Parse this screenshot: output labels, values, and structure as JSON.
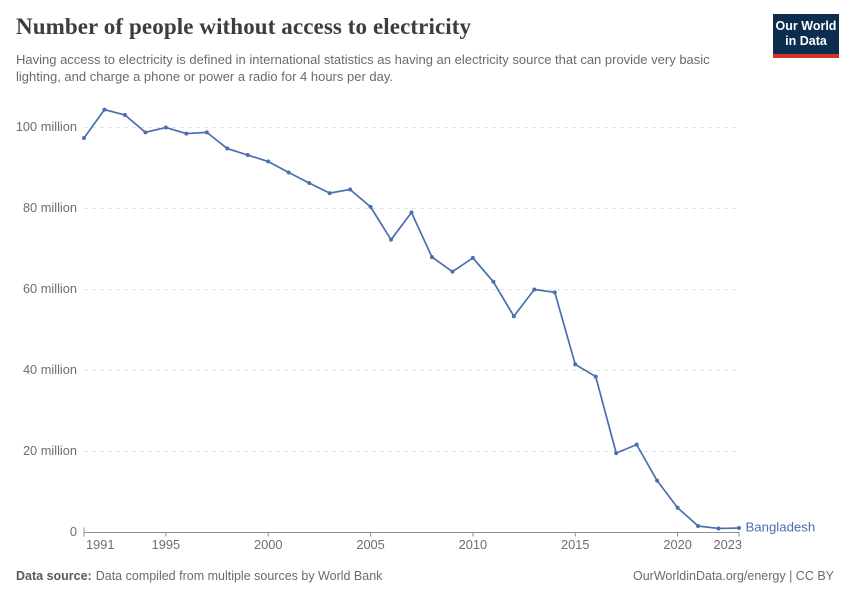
{
  "header": {
    "title": "Number of people without access to electricity",
    "subtitle": "Having access to electricity is defined in international statistics as having an electricity source that can provide very basic lighting, and charge a phone or power a radio for 4 hours per day.",
    "logo": {
      "line1": "Our World",
      "line2": "in Data",
      "bg_color": "#0d2d4f",
      "accent_color": "#d3352e"
    }
  },
  "chart_data": {
    "type": "line",
    "title": "Number of people without access to electricity",
    "unit": "million people",
    "grid": "horizontal-dashed",
    "legend_position": "end-of-line-label",
    "xlim": [
      1991,
      2023
    ],
    "ylim": [
      0,
      105
    ],
    "x": [
      1991,
      1992,
      1993,
      1994,
      1995,
      1996,
      1997,
      1998,
      1999,
      2000,
      2001,
      2002,
      2003,
      2004,
      2005,
      2006,
      2007,
      2008,
      2009,
      2010,
      2011,
      2012,
      2013,
      2014,
      2015,
      2016,
      2017,
      2018,
      2019,
      2020,
      2021,
      2022,
      2023
    ],
    "series": [
      {
        "name": "Bangladesh",
        "color": "#4a6fae",
        "values": [
          97.4,
          104.4,
          103.1,
          98.8,
          100.0,
          98.5,
          98.8,
          94.8,
          93.2,
          91.6,
          88.9,
          86.3,
          83.8,
          84.7,
          80.4,
          72.3,
          79.0,
          68.0,
          64.4,
          67.8,
          61.9,
          53.4,
          60.0,
          59.3,
          41.5,
          38.5,
          19.6,
          21.7,
          12.8,
          6.1,
          1.6,
          1.0,
          1.1
        ]
      }
    ],
    "y_ticks": [
      {
        "v": 0,
        "label": "0"
      },
      {
        "v": 20,
        "label": "20 million"
      },
      {
        "v": 40,
        "label": "40 million"
      },
      {
        "v": 60,
        "label": "60 million"
      },
      {
        "v": 80,
        "label": "80 million"
      },
      {
        "v": 100,
        "label": "100 million"
      }
    ],
    "x_ticks": [
      {
        "v": 1991,
        "label": "1991"
      },
      {
        "v": 1995,
        "label": "1995"
      },
      {
        "v": 2000,
        "label": "2000"
      },
      {
        "v": 2005,
        "label": "2005"
      },
      {
        "v": 2010,
        "label": "2010"
      },
      {
        "v": 2015,
        "label": "2015"
      },
      {
        "v": 2020,
        "label": "2020"
      },
      {
        "v": 2023,
        "label": "2023"
      }
    ]
  },
  "footer": {
    "source_label": "Data source:",
    "source_text": "Data compiled from multiple sources by World Bank",
    "credit": "OurWorldinData.org/energy | CC BY"
  }
}
